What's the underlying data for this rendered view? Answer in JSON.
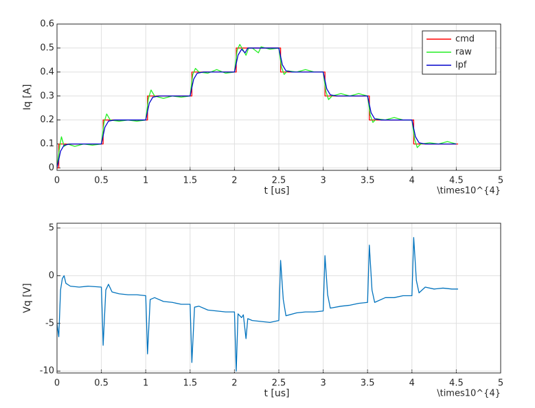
{
  "chart_data": [
    {
      "type": "line",
      "xlabel": "t [us]",
      "ylabel": "Iq [A]",
      "x_exponent_label": "\\times10^{4}",
      "xlim": [
        0,
        5
      ],
      "xticks": [
        0,
        0.5,
        1,
        1.5,
        2,
        2.5,
        3,
        3.5,
        4,
        4.5,
        5
      ],
      "ylim": [
        -0.01,
        0.6
      ],
      "yticks": [
        0,
        0.1,
        0.2,
        0.3,
        0.4,
        0.5,
        0.6
      ],
      "grid": true,
      "legend": "northeast",
      "series": [
        {
          "name": "cmd",
          "color": "#ff0000",
          "x": [
            0,
            0.02,
            0.02,
            0.52,
            0.52,
            1.02,
            1.02,
            1.52,
            1.52,
            2.02,
            2.02,
            2.52,
            2.52,
            3.02,
            3.02,
            3.52,
            3.52,
            4.02,
            4.02,
            4.52
          ],
          "values": [
            0,
            0,
            0.1,
            0.1,
            0.2,
            0.2,
            0.3,
            0.3,
            0.4,
            0.4,
            0.5,
            0.5,
            0.4,
            0.4,
            0.3,
            0.3,
            0.2,
            0.2,
            0.1,
            0.1
          ]
        },
        {
          "name": "raw",
          "color": "#22ee22",
          "x": [
            0,
            0.03,
            0.05,
            0.08,
            0.12,
            0.2,
            0.3,
            0.4,
            0.5,
            0.53,
            0.56,
            0.6,
            0.7,
            0.8,
            0.9,
            1.0,
            1.03,
            1.06,
            1.1,
            1.2,
            1.3,
            1.4,
            1.5,
            1.53,
            1.56,
            1.6,
            1.7,
            1.8,
            1.9,
            2.0,
            2.03,
            2.06,
            2.1,
            2.13,
            2.16,
            2.2,
            2.27,
            2.3,
            2.4,
            2.5,
            2.53,
            2.56,
            2.6,
            2.7,
            2.8,
            2.9,
            3.0,
            3.03,
            3.06,
            3.1,
            3.2,
            3.3,
            3.4,
            3.5,
            3.53,
            3.56,
            3.6,
            3.7,
            3.8,
            3.9,
            4.0,
            4.03,
            4.06,
            4.1,
            4.2,
            4.3,
            4.4,
            4.5
          ],
          "values": [
            0,
            0.09,
            0.13,
            0.09,
            0.1,
            0.09,
            0.1,
            0.095,
            0.1,
            0.19,
            0.225,
            0.2,
            0.195,
            0.2,
            0.195,
            0.2,
            0.29,
            0.325,
            0.3,
            0.29,
            0.3,
            0.295,
            0.3,
            0.39,
            0.415,
            0.4,
            0.395,
            0.41,
            0.395,
            0.4,
            0.49,
            0.515,
            0.49,
            0.47,
            0.5,
            0.5,
            0.48,
            0.505,
            0.495,
            0.5,
            0.42,
            0.39,
            0.405,
            0.4,
            0.41,
            0.4,
            0.4,
            0.32,
            0.285,
            0.3,
            0.31,
            0.3,
            0.31,
            0.3,
            0.22,
            0.19,
            0.205,
            0.2,
            0.21,
            0.2,
            0.2,
            0.12,
            0.085,
            0.1,
            0.105,
            0.1,
            0.11,
            0.1
          ]
        },
        {
          "name": "lpf",
          "color": "#0000cc",
          "x": [
            0,
            0.04,
            0.08,
            0.15,
            0.5,
            0.54,
            0.58,
            0.65,
            1.0,
            1.04,
            1.08,
            1.15,
            1.5,
            1.54,
            1.58,
            1.65,
            2.0,
            2.04,
            2.08,
            2.12,
            2.15,
            2.5,
            2.54,
            2.58,
            2.65,
            3.0,
            3.04,
            3.08,
            3.15,
            3.5,
            3.54,
            3.58,
            3.65,
            4.0,
            4.04,
            4.08,
            4.15,
            4.5
          ],
          "values": [
            0,
            0.07,
            0.095,
            0.1,
            0.1,
            0.17,
            0.195,
            0.2,
            0.2,
            0.27,
            0.295,
            0.3,
            0.3,
            0.37,
            0.395,
            0.4,
            0.4,
            0.47,
            0.495,
            0.48,
            0.5,
            0.5,
            0.43,
            0.405,
            0.4,
            0.4,
            0.33,
            0.305,
            0.3,
            0.3,
            0.23,
            0.205,
            0.2,
            0.2,
            0.13,
            0.105,
            0.1,
            0.1
          ]
        }
      ]
    },
    {
      "type": "line",
      "xlabel": "t [us]",
      "ylabel": "Vq [V]",
      "x_exponent_label": "\\times10^{4}",
      "xlim": [
        0,
        5
      ],
      "xticks": [
        0,
        0.5,
        1,
        1.5,
        2,
        2.5,
        3,
        3.5,
        4,
        4.5,
        5
      ],
      "ylim": [
        -10.2,
        5.5
      ],
      "yticks": [
        -10,
        -5,
        0,
        5
      ],
      "grid": true,
      "series": [
        {
          "color": "#0072bd",
          "x": [
            0,
            0.02,
            0.04,
            0.06,
            0.08,
            0.1,
            0.15,
            0.25,
            0.35,
            0.5,
            0.51,
            0.52,
            0.55,
            0.58,
            0.62,
            0.7,
            0.8,
            0.9,
            1.0,
            1.01,
            1.02,
            1.05,
            1.1,
            1.2,
            1.3,
            1.4,
            1.5,
            1.52,
            1.55,
            1.6,
            1.7,
            1.8,
            1.9,
            2.0,
            2.01,
            2.02,
            2.04,
            2.08,
            2.1,
            2.13,
            2.15,
            2.2,
            2.3,
            2.4,
            2.5,
            2.52,
            2.55,
            2.58,
            2.7,
            2.8,
            2.9,
            3.0,
            3.02,
            3.05,
            3.08,
            3.2,
            3.3,
            3.4,
            3.5,
            3.52,
            3.55,
            3.58,
            3.7,
            3.8,
            3.9,
            4.0,
            4.02,
            4.05,
            4.08,
            4.15,
            4.25,
            4.35,
            4.45,
            4.52
          ],
          "values": [
            -5,
            -6.4,
            -1.5,
            -0.3,
            0,
            -0.8,
            -1.1,
            -1.2,
            -1.1,
            -1.2,
            -4,
            -7.3,
            -1.5,
            -0.9,
            -1.7,
            -1.9,
            -2,
            -2,
            -2.1,
            -5,
            -8.2,
            -2.5,
            -2.3,
            -2.7,
            -2.8,
            -3,
            -3,
            -9.1,
            -3.3,
            -3.2,
            -3.6,
            -3.7,
            -3.8,
            -3.8,
            -7,
            -10,
            -4,
            -4.4,
            -4.1,
            -6.6,
            -4.5,
            -4.7,
            -4.8,
            -4.9,
            -4.7,
            1.6,
            -2.5,
            -4.2,
            -3.9,
            -3.8,
            -3.8,
            -3.7,
            2.1,
            -2,
            -3.4,
            -3.2,
            -3.1,
            -2.9,
            -2.8,
            3.2,
            -1.5,
            -2.8,
            -2.3,
            -2.3,
            -2.1,
            -2.1,
            4,
            -0.5,
            -1.8,
            -1.2,
            -1.4,
            -1.3,
            -1.4,
            -1.4
          ]
        }
      ]
    }
  ]
}
